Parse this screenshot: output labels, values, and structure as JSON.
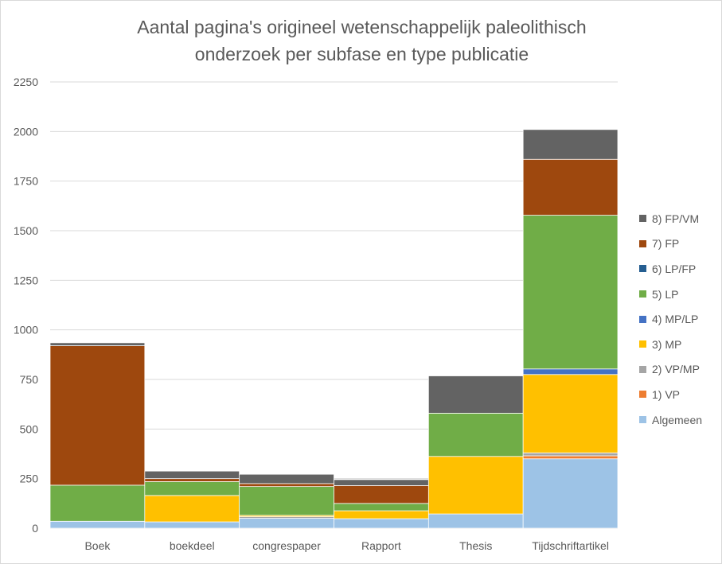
{
  "chart_data": {
    "type": "bar",
    "stacked": true,
    "title": [
      "Aantal pagina's origineel wetenschappelijk paleolithisch",
      "onderzoek per subfase en type publicatie"
    ],
    "categories": [
      "Boek",
      "boekdeel",
      "congrespaper",
      "Rapport",
      "Thesis",
      "Tijdschriftartikel"
    ],
    "ylim": [
      0,
      2250
    ],
    "yticks": [
      0,
      250,
      500,
      750,
      1000,
      1250,
      1500,
      1750,
      2000,
      2250
    ],
    "grid": true,
    "legend_position": "right",
    "series": [
      {
        "name": "Algemeen",
        "color": "#9dc3e6",
        "values": [
          35,
          32,
          50,
          48,
          72,
          350
        ]
      },
      {
        "name": "1) VP",
        "color": "#ed7d31",
        "values": [
          0,
          0,
          0,
          0,
          0,
          15
        ]
      },
      {
        "name": "2) VP/MP",
        "color": "#a5a5a5",
        "values": [
          0,
          0,
          8,
          0,
          0,
          15
        ]
      },
      {
        "name": "3) MP",
        "color": "#ffc000",
        "values": [
          0,
          133,
          7,
          40,
          290,
          395
        ]
      },
      {
        "name": "4) MP/LP",
        "color": "#4472c4",
        "values": [
          0,
          0,
          0,
          0,
          0,
          28
        ]
      },
      {
        "name": "5) LP",
        "color": "#70ad47",
        "values": [
          182,
          70,
          145,
          37,
          218,
          775
        ]
      },
      {
        "name": "6) LP/FP",
        "color": "#255e91",
        "values": [
          0,
          0,
          0,
          0,
          0,
          0
        ]
      },
      {
        "name": "7) FP",
        "color": "#9e480e",
        "values": [
          703,
          15,
          15,
          90,
          0,
          282
        ]
      },
      {
        "name": "8) FP/VM",
        "color": "#636363",
        "values": [
          15,
          38,
          47,
          30,
          188,
          150
        ]
      }
    ]
  }
}
